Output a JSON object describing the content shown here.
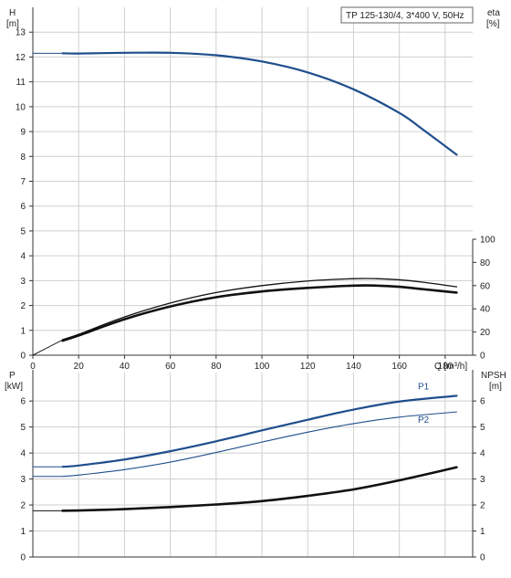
{
  "chart_data": {
    "type": "line",
    "title": "TP 125-130/4, 3*400 V, 50Hz",
    "x_axis": {
      "label": "Q [m³/h]",
      "ticks": [
        0,
        20,
        40,
        60,
        80,
        100,
        120,
        140,
        160,
        180
      ],
      "range": [
        0,
        192
      ]
    },
    "top": {
      "left_axis": {
        "name": "H",
        "unit": "[m]",
        "range": [
          0,
          14
        ],
        "ticks": [
          0,
          1,
          2,
          3,
          4,
          5,
          6,
          7,
          8,
          9,
          10,
          11,
          12,
          13
        ]
      },
      "right_axis": {
        "name": "eta",
        "unit": "[%]",
        "range": [
          0,
          100
        ],
        "ticks": [
          0,
          20,
          40,
          60,
          80,
          100
        ]
      },
      "series": [
        {
          "axis": "left",
          "color": "#1f4e8c",
          "width": 2.2,
          "points": [
            [
              13,
              12.15
            ],
            [
              20,
              12.14
            ],
            [
              40,
              12.17
            ],
            [
              60,
              12.17
            ],
            [
              80,
              12.07
            ],
            [
              100,
              11.82
            ],
            [
              120,
              11.38
            ],
            [
              140,
              10.7
            ],
            [
              160,
              9.75
            ],
            [
              170,
              9.1
            ],
            [
              185,
              8.07
            ]
          ]
        },
        {
          "axis": "right",
          "color": "#111111",
          "width": 1.3,
          "points": [
            [
              13,
              13.5
            ],
            [
              20,
              18
            ],
            [
              40,
              33
            ],
            [
              60,
              45
            ],
            [
              80,
              54
            ],
            [
              100,
              60
            ],
            [
              120,
              64
            ],
            [
              140,
              66
            ],
            [
              150,
              66
            ],
            [
              160,
              65
            ],
            [
              170,
              63
            ],
            [
              185,
              59
            ]
          ]
        },
        {
          "axis": "right",
          "color": "#111111",
          "width": 2.6,
          "points": [
            [
              13,
              12.5
            ],
            [
              20,
              17
            ],
            [
              40,
              31
            ],
            [
              60,
              42
            ],
            [
              80,
              50
            ],
            [
              100,
              55
            ],
            [
              120,
              58
            ],
            [
              140,
              60
            ],
            [
              150,
              60
            ],
            [
              160,
              59
            ],
            [
              170,
              57
            ],
            [
              185,
              54
            ]
          ]
        }
      ],
      "stub_left": {
        "from_x": 0,
        "to_x": 13,
        "left_y": 12.15
      }
    },
    "bottom": {
      "left_axis": {
        "name": "P",
        "unit": "[kW]",
        "range": [
          0,
          7.2
        ],
        "ticks": [
          0,
          1,
          2,
          3,
          4,
          5,
          6
        ]
      },
      "right_axis": {
        "name": "NPSH",
        "unit": "[m]",
        "range": [
          0,
          7.2
        ],
        "ticks": [
          0,
          1,
          2,
          3,
          4,
          5,
          6
        ]
      },
      "series": [
        {
          "name": "P1",
          "color": "#1f4e8c",
          "width": 2.2,
          "points": [
            [
              13,
              3.47
            ],
            [
              20,
              3.52
            ],
            [
              40,
              3.75
            ],
            [
              60,
              4.07
            ],
            [
              80,
              4.45
            ],
            [
              100,
              4.87
            ],
            [
              120,
              5.28
            ],
            [
              140,
              5.67
            ],
            [
              160,
              5.98
            ],
            [
              185,
              6.2
            ]
          ]
        },
        {
          "name": "P2",
          "color": "#1f4e8c",
          "width": 1.1,
          "points": [
            [
              13,
              3.1
            ],
            [
              20,
              3.15
            ],
            [
              40,
              3.36
            ],
            [
              60,
              3.65
            ],
            [
              80,
              4.02
            ],
            [
              100,
              4.42
            ],
            [
              120,
              4.8
            ],
            [
              140,
              5.13
            ],
            [
              160,
              5.38
            ],
            [
              185,
              5.58
            ]
          ]
        },
        {
          "name": "",
          "color": "#111111",
          "width": 2.6,
          "points": [
            [
              13,
              1.78
            ],
            [
              20,
              1.79
            ],
            [
              40,
              1.84
            ],
            [
              60,
              1.92
            ],
            [
              80,
              2.02
            ],
            [
              100,
              2.15
            ],
            [
              120,
              2.35
            ],
            [
              140,
              2.6
            ],
            [
              160,
              2.95
            ],
            [
              185,
              3.45
            ]
          ]
        }
      ]
    }
  }
}
